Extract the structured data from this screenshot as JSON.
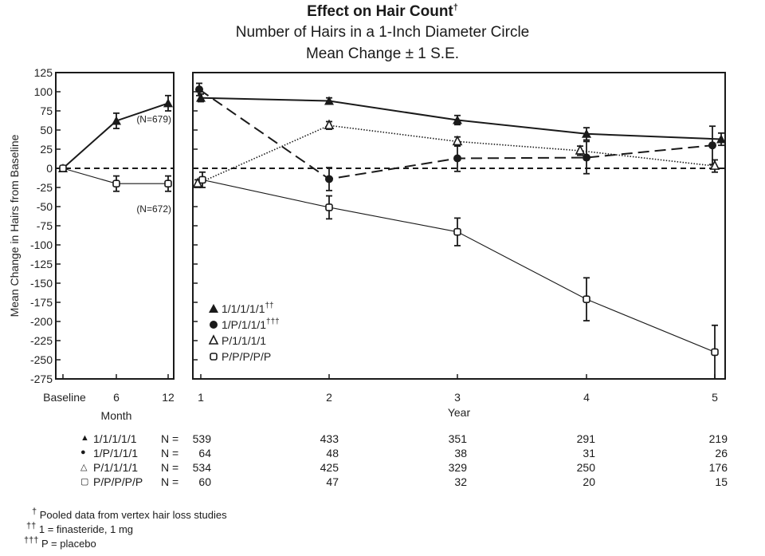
{
  "header": {
    "title": "Effect on Hair Count",
    "title_mark": "†",
    "subtitle": "Number of Hairs in a 1-Inch Diameter Circle",
    "subtitle2": "Mean Change ± 1 S.E."
  },
  "chart_data": [
    {
      "type": "line",
      "panel": "months",
      "xlabel": "Month",
      "ylabel": "Mean Change in Hairs from Baseline",
      "x_tick_labels": [
        "Baseline",
        "6",
        "12"
      ],
      "x": [
        0,
        6,
        12
      ],
      "ylim": [
        -275,
        125
      ],
      "y_ticks": [
        125,
        100,
        75,
        50,
        25,
        0,
        -25,
        -50,
        -75,
        -100,
        -125,
        -150,
        -175,
        -200,
        -225,
        -250,
        -275
      ],
      "reference_line": 0,
      "series": [
        {
          "name": "1",
          "marker": "filled-triangle",
          "values": [
            0,
            62,
            85
          ],
          "se": [
            0,
            10,
            10
          ],
          "annotation": "(N=679)"
        },
        {
          "name": "P",
          "marker": "open-square",
          "values": [
            0,
            -20,
            -20
          ],
          "se": [
            0,
            10,
            10
          ],
          "annotation": "(N=672)"
        }
      ]
    },
    {
      "type": "line",
      "panel": "years",
      "xlabel": "Year",
      "x_tick_labels": [
        "1",
        "2",
        "3",
        "4",
        "5"
      ],
      "x": [
        1,
        2,
        3,
        4,
        5
      ],
      "ylim": [
        -275,
        125
      ],
      "reference_line": 0,
      "legend_placement": "bottom-left",
      "series": [
        {
          "name": "1/1/1/1/1",
          "legend_mark": "††",
          "marker": "filled-triangle",
          "line": "solid-thick",
          "values": [
            92,
            88,
            63,
            45,
            38
          ],
          "se": [
            5,
            4,
            6,
            8,
            8
          ]
        },
        {
          "name": "1/P/1/1/1",
          "legend_mark": "†††",
          "marker": "filled-circle",
          "line": "long-dash",
          "values": [
            103,
            -14,
            13,
            14,
            30
          ],
          "se": [
            8,
            15,
            17,
            21,
            25
          ]
        },
        {
          "name": "P/1/1/1/1",
          "legend_mark": "",
          "marker": "open-triangle",
          "line": "dotted",
          "values": [
            -20,
            56,
            35,
            23,
            3
          ],
          "se": [
            5,
            5,
            6,
            6,
            8
          ]
        },
        {
          "name": "P/P/P/P/P",
          "legend_mark": "",
          "marker": "open-square",
          "line": "solid-thin",
          "values": [
            -15,
            -51,
            -83,
            -171,
            -240
          ],
          "se": [
            10,
            15,
            18,
            28,
            35
          ]
        }
      ]
    }
  ],
  "n_table": {
    "n_label": "N =",
    "rows": [
      {
        "group": "1/1/1/1/1",
        "marker": "filled-triangle",
        "values": [
          "539",
          "433",
          "351",
          "291",
          "219"
        ]
      },
      {
        "group": "1/P/1/1/1",
        "marker": "filled-circle",
        "values": [
          "64",
          "48",
          "38",
          "31",
          "26"
        ]
      },
      {
        "group": "P/1/1/1/1",
        "marker": "open-triangle",
        "values": [
          "534",
          "425",
          "329",
          "250",
          "176"
        ]
      },
      {
        "group": "P/P/P/P/P",
        "marker": "open-square",
        "values": [
          "60",
          "47",
          "32",
          "20",
          "15"
        ]
      }
    ]
  },
  "footnotes": [
    {
      "mark": "†",
      "text": "Pooled data from vertex hair loss studies"
    },
    {
      "mark": "††",
      "text": "1 = finasteride, 1 mg"
    },
    {
      "mark": "†††",
      "text": "P = placebo"
    }
  ],
  "colors": {
    "ink": "#1a1a1a",
    "background": "#ffffff"
  }
}
